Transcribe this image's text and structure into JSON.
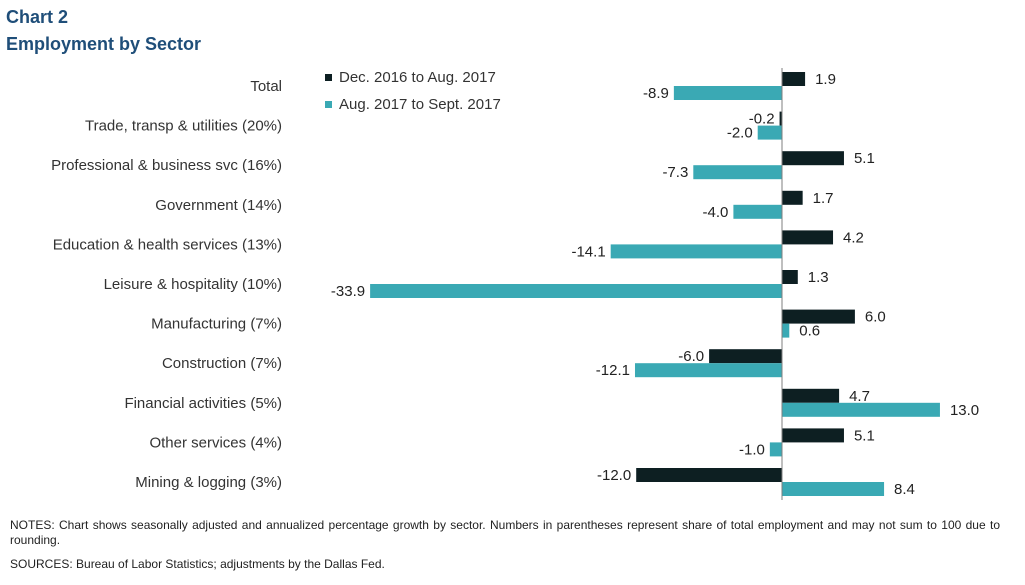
{
  "header": {
    "chart_number": "Chart 2",
    "title": "Employment  by Sector"
  },
  "footer": {
    "notes": "NOTES:  Chart shows seasonally adjusted and annualized percentage growth by sector. Numbers in parentheses represent share of total employment and may not sum to 100 due to rounding.",
    "sources": "SOURCES:  Bureau of Labor Statistics; adjustments by the Dallas Fed."
  },
  "chart_data": {
    "type": "bar",
    "orientation": "horizontal",
    "categories": [
      "Total",
      "Trade, transp & utilities (20%)",
      "Professional & business svc (16%)",
      "Government (14%)",
      "Education & health services (13%)",
      "Leisure & hospitality (10%)",
      "Manufacturing (7%)",
      "Construction (7%)",
      "Financial activities (5%)",
      "Other services (4%)",
      "Mining & logging (3%)"
    ],
    "series": [
      {
        "name": "Dec. 2016 to Aug. 2017",
        "color": "#0d1f22",
        "values": [
          1.9,
          -0.2,
          5.1,
          1.7,
          4.2,
          1.3,
          6.0,
          -6.0,
          4.7,
          5.1,
          -12.0
        ]
      },
      {
        "name": "Aug. 2017 to Sept. 2017",
        "color": "#3aa9b4",
        "values": [
          -8.9,
          -2.0,
          -7.3,
          -4.0,
          -14.1,
          -33.9,
          0.6,
          -12.1,
          13.0,
          -1.0,
          8.4
        ]
      }
    ],
    "legend_position": "top-left",
    "grid": false,
    "value_labels": true,
    "decimals": 1
  }
}
